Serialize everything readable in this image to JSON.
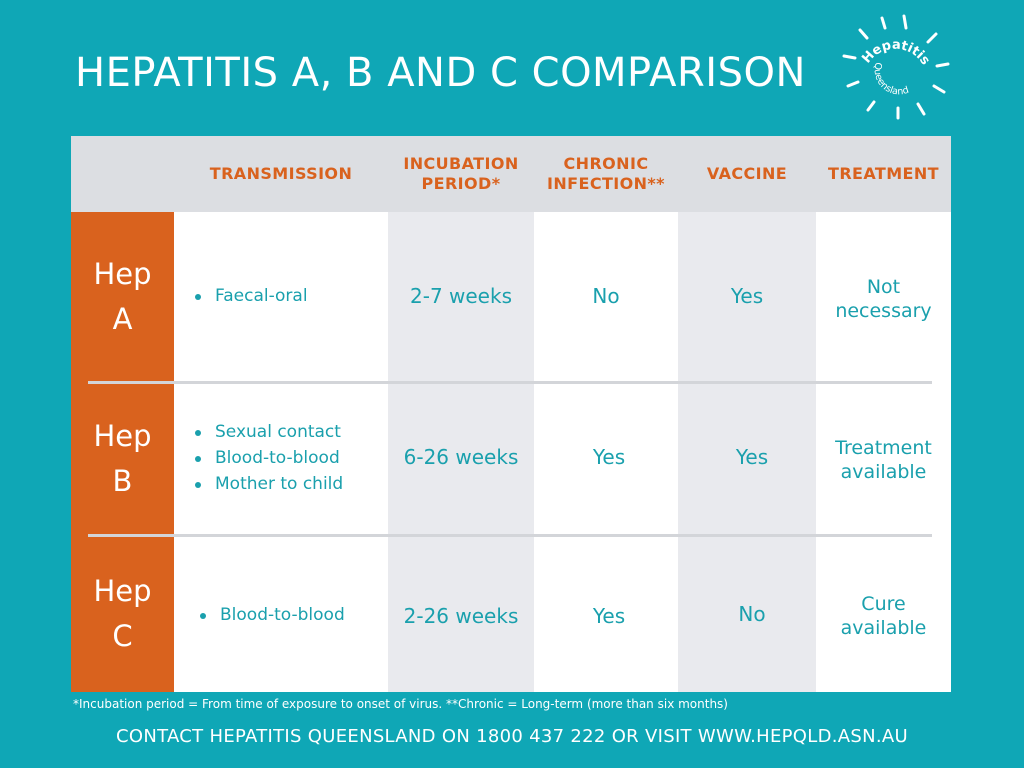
{
  "title": "HEPATITIS A, B AND C COMPARISON",
  "logo": {
    "line1": "Hepatitis",
    "line2": "Queensland"
  },
  "columns": [
    "TRANSMISSION",
    "INCUBATION PERIOD*",
    "CHRONIC INFECTION**",
    "VACCINE",
    "TREATMENT"
  ],
  "column_lines": {
    "incubation": [
      "INCUBATION",
      "PERIOD*"
    ],
    "chronic": [
      "CHRONIC",
      "INFECTION**"
    ]
  },
  "rows": [
    {
      "label": [
        "Hep",
        "A"
      ],
      "transmission": [
        "Faecal-oral"
      ],
      "incubation": "2-7 weeks",
      "chronic": "No",
      "vaccine": "Yes",
      "treatment": [
        "Not",
        "necessary"
      ]
    },
    {
      "label": [
        "Hep",
        "B"
      ],
      "transmission": [
        "Sexual contact",
        "Blood-to-blood",
        "Mother to child"
      ],
      "incubation": "6-26 weeks",
      "chronic": "Yes",
      "vaccine": "Yes",
      "treatment": [
        "Treatment",
        "available"
      ]
    },
    {
      "label": [
        "Hep",
        "C"
      ],
      "transmission": [
        "Blood-to-blood"
      ],
      "incubation": "2-26 weeks",
      "chronic": "Yes",
      "vaccine": "No",
      "treatment": [
        "Cure",
        "available"
      ]
    }
  ],
  "footnote": "*Incubation period = From time of exposure to onset of virus.  **Chronic = Long-term (more than six months)",
  "contact": "CONTACT HEPATITIS QUEENSLAND ON 1800 437 222 OR VISIT WWW.HEPQLD.ASN.AU",
  "colors": {
    "background": "#0fa7b6",
    "accent": "#d9621e",
    "text": "#1aa0ad",
    "header_bg": "#dcdee2"
  }
}
